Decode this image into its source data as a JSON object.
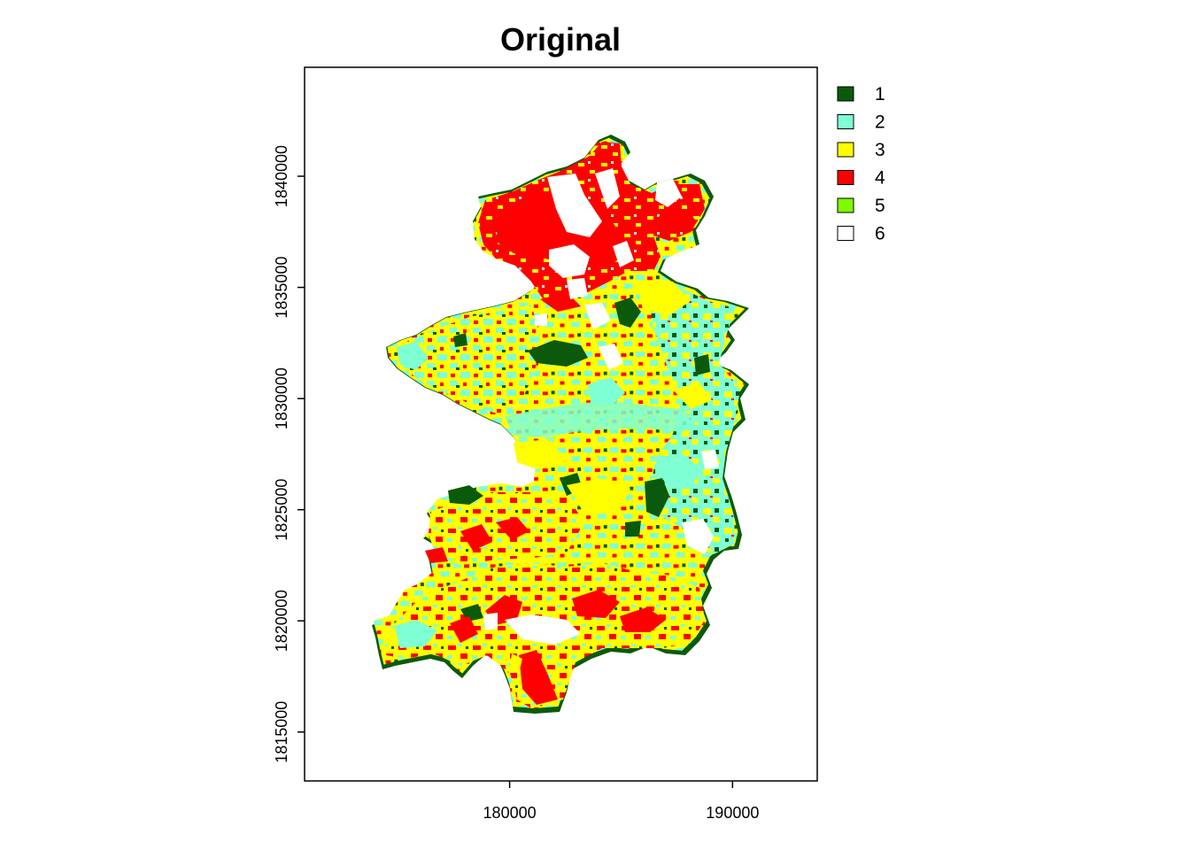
{
  "title": "Original",
  "map": {
    "x_axis": {
      "ticks": [
        180000,
        190000
      ],
      "range": [
        170800,
        193800
      ]
    },
    "y_axis": {
      "ticks": [
        1815000,
        1820000,
        1825000,
        1830000,
        1835000,
        1840000
      ],
      "range": [
        1812800,
        1844900
      ]
    }
  },
  "legend": [
    {
      "label": "1",
      "color": "#0b5a0b"
    },
    {
      "label": "2",
      "color": "#7fffd4"
    },
    {
      "label": "3",
      "color": "#ffff00"
    },
    {
      "label": "4",
      "color": "#ff0000"
    },
    {
      "label": "5",
      "color": "#7cfc00"
    },
    {
      "label": "6",
      "color": "#ffffff"
    }
  ]
}
